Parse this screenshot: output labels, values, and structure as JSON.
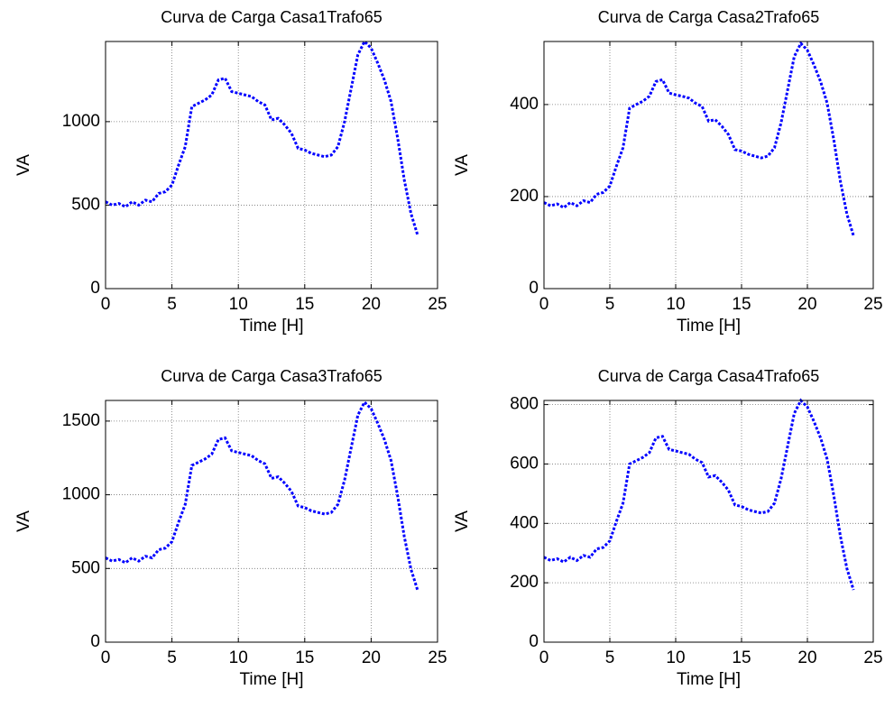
{
  "chart_data": [
    {
      "type": "line",
      "title": "Curva de Carga Casa1Trafo65",
      "xlabel": "Time [H]",
      "ylabel": "VA",
      "xlim": [
        0,
        25
      ],
      "xticks": [
        0,
        5,
        10,
        15,
        20,
        25
      ],
      "ylim": [
        0,
        1480
      ],
      "yticks": [
        0,
        500,
        1000
      ],
      "grid": true,
      "series": [
        {
          "color": "#0000ff",
          "x": [
            0,
            0.5,
            1,
            1.5,
            2,
            2.5,
            3,
            3.5,
            4,
            4.5,
            5,
            5.5,
            6,
            6.5,
            7,
            7.5,
            8,
            8.5,
            9,
            9.5,
            10,
            10.5,
            11,
            11.5,
            12,
            12.5,
            13,
            13.5,
            14,
            14.5,
            15,
            15.5,
            16,
            16.5,
            17,
            17.5,
            18,
            18.5,
            19,
            19.5,
            20,
            20.5,
            21,
            21.5,
            22,
            22.5,
            23,
            23.5
          ],
          "values": [
            520,
            500,
            510,
            490,
            520,
            500,
            530,
            520,
            570,
            580,
            620,
            740,
            850,
            1090,
            1110,
            1130,
            1160,
            1250,
            1260,
            1180,
            1170,
            1160,
            1150,
            1120,
            1100,
            1010,
            1020,
            980,
            930,
            840,
            830,
            810,
            800,
            790,
            800,
            850,
            1000,
            1200,
            1400,
            1480,
            1440,
            1350,
            1250,
            1120,
            900,
            650,
            450,
            320
          ]
        }
      ]
    },
    {
      "type": "line",
      "title": "Curva de Carga Casa2Trafo65",
      "xlabel": "Time [H]",
      "ylabel": "VA",
      "xlim": [
        0,
        25
      ],
      "xticks": [
        0,
        5,
        10,
        15,
        20,
        25
      ],
      "ylim": [
        0,
        537
      ],
      "yticks": [
        0,
        200,
        400
      ],
      "grid": true,
      "series": [
        {
          "color": "#0000ff",
          "x": [
            0,
            0.5,
            1,
            1.5,
            2,
            2.5,
            3,
            3.5,
            4,
            4.5,
            5,
            5.5,
            6,
            6.5,
            7,
            7.5,
            8,
            8.5,
            9,
            9.5,
            10,
            10.5,
            11,
            11.5,
            12,
            12.5,
            13,
            13.5,
            14,
            14.5,
            15,
            15.5,
            16,
            16.5,
            17,
            17.5,
            18,
            18.5,
            19,
            19.5,
            20,
            20.5,
            21,
            21.5,
            22,
            22.5,
            23,
            23.5
          ],
          "values": [
            187,
            180,
            184,
            176,
            187,
            180,
            191,
            187,
            205,
            209,
            223,
            266,
            306,
            392,
            400,
            407,
            418,
            450,
            454,
            425,
            421,
            418,
            414,
            403,
            396,
            364,
            367,
            353,
            335,
            302,
            299,
            292,
            288,
            284,
            288,
            306,
            360,
            432,
            504,
            533,
            518,
            486,
            450,
            403,
            324,
            234,
            162,
            115
          ]
        }
      ]
    },
    {
      "type": "line",
      "title": "Curva de Carga Casa3Trafo65",
      "xlabel": "Time [H]",
      "ylabel": "VA",
      "xlim": [
        0,
        25
      ],
      "xticks": [
        0,
        5,
        10,
        15,
        20,
        25
      ],
      "ylim": [
        0,
        1640
      ],
      "yticks": [
        0,
        500,
        1000,
        1500
      ],
      "grid": true,
      "series": [
        {
          "color": "#0000ff",
          "x": [
            0,
            0.5,
            1,
            1.5,
            2,
            2.5,
            3,
            3.5,
            4,
            4.5,
            5,
            5.5,
            6,
            6.5,
            7,
            7.5,
            8,
            8.5,
            9,
            9.5,
            10,
            10.5,
            11,
            11.5,
            12,
            12.5,
            13,
            13.5,
            14,
            14.5,
            15,
            15.5,
            16,
            16.5,
            17,
            17.5,
            18,
            18.5,
            19,
            19.5,
            20,
            20.5,
            21,
            21.5,
            22,
            22.5,
            23,
            23.5
          ],
          "values": [
            572,
            550,
            561,
            539,
            572,
            550,
            583,
            572,
            627,
            638,
            682,
            814,
            935,
            1199,
            1221,
            1243,
            1276,
            1375,
            1386,
            1298,
            1287,
            1276,
            1265,
            1232,
            1210,
            1111,
            1122,
            1078,
            1023,
            924,
            913,
            891,
            880,
            869,
            880,
            935,
            1100,
            1320,
            1540,
            1628,
            1584,
            1485,
            1375,
            1232,
            990,
            715,
            495,
            352
          ]
        }
      ]
    },
    {
      "type": "line",
      "title": "Curva de Carga Casa4Trafo65",
      "xlabel": "Time [H]",
      "ylabel": "VA",
      "xlim": [
        0,
        25
      ],
      "xticks": [
        0,
        5,
        10,
        15,
        20,
        25
      ],
      "ylim": [
        0,
        814
      ],
      "yticks": [
        0,
        200,
        400,
        600,
        800
      ],
      "grid": true,
      "series": [
        {
          "color": "#0000ff",
          "x": [
            0,
            0.5,
            1,
            1.5,
            2,
            2.5,
            3,
            3.5,
            4,
            4.5,
            5,
            5.5,
            6,
            6.5,
            7,
            7.5,
            8,
            8.5,
            9,
            9.5,
            10,
            10.5,
            11,
            11.5,
            12,
            12.5,
            13,
            13.5,
            14,
            14.5,
            15,
            15.5,
            16,
            16.5,
            17,
            17.5,
            18,
            18.5,
            19,
            19.5,
            20,
            20.5,
            21,
            21.5,
            22,
            22.5,
            23,
            23.5
          ],
          "values": [
            286,
            275,
            281,
            270,
            286,
            275,
            292,
            286,
            314,
            319,
            341,
            407,
            468,
            600,
            611,
            622,
            638,
            688,
            693,
            649,
            644,
            638,
            633,
            616,
            605,
            556,
            561,
            539,
            512,
            462,
            457,
            446,
            440,
            435,
            440,
            468,
            550,
            660,
            770,
            814,
            792,
            743,
            688,
            616,
            495,
            358,
            248,
            176
          ]
        }
      ]
    }
  ]
}
